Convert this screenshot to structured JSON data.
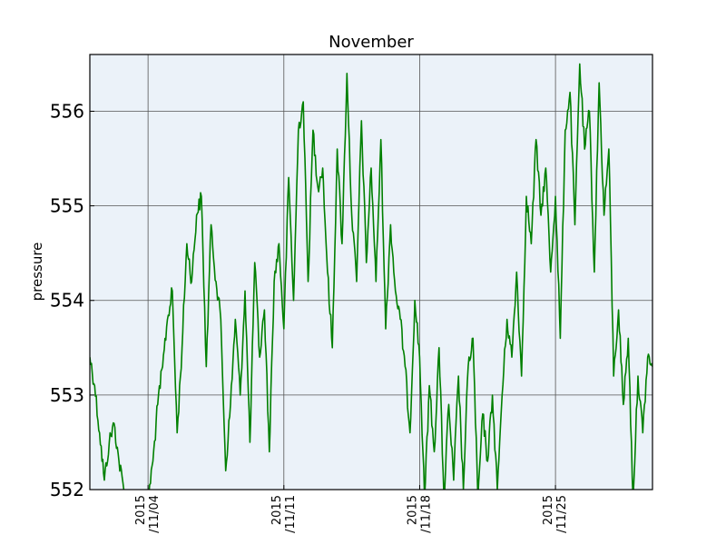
{
  "chart_data": {
    "type": "line",
    "title": "November",
    "xlabel": "",
    "ylabel": "pressure",
    "ylim": [
      552,
      556.6
    ],
    "xlim": [
      "2015-11-01",
      "2015-11-30"
    ],
    "grid": true,
    "yticks": [
      552,
      553,
      554,
      555,
      556
    ],
    "xticks": [
      {
        "date": "2015-11-04",
        "line1": "2015",
        "line2": "/11/04"
      },
      {
        "date": "2015-11-11",
        "line1": "2015",
        "line2": "/11/11"
      },
      {
        "date": "2015-11-18",
        "line1": "2015",
        "line2": "/11/18"
      },
      {
        "date": "2015-11-25",
        "line1": "2015",
        "line2": "/11/25"
      }
    ],
    "series": [
      {
        "color": "#008000",
        "points": [
          [
            "2015-11-01 00:00",
            553.4
          ],
          [
            "2015-11-01 06:00",
            553.1
          ],
          [
            "2015-11-01 12:00",
            552.6
          ],
          [
            "2015-11-01 18:00",
            552.1
          ],
          [
            "2015-11-02 00:00",
            552.5
          ],
          [
            "2015-11-02 06:00",
            552.7
          ],
          [
            "2015-11-02 12:00",
            552.3
          ],
          [
            "2015-11-02 18:00",
            552.0
          ],
          [
            "2015-11-03 00:00",
            551.9
          ],
          [
            "2015-11-03 12:00",
            551.9
          ],
          [
            "2015-11-04 00:00",
            551.9
          ],
          [
            "2015-11-04 06:00",
            552.3
          ],
          [
            "2015-11-04 12:00",
            552.9
          ],
          [
            "2015-11-04 18:00",
            553.3
          ],
          [
            "2015-11-05 00:00",
            553.8
          ],
          [
            "2015-11-05 06:00",
            554.1
          ],
          [
            "2015-11-05 12:00",
            552.6
          ],
          [
            "2015-11-05 18:00",
            553.5
          ],
          [
            "2015-11-06 00:00",
            554.6
          ],
          [
            "2015-11-06 06:00",
            554.2
          ],
          [
            "2015-11-06 12:00",
            554.9
          ],
          [
            "2015-11-06 18:00",
            555.1
          ],
          [
            "2015-11-07 00:00",
            553.3
          ],
          [
            "2015-11-07 06:00",
            554.8
          ],
          [
            "2015-11-07 12:00",
            554.2
          ],
          [
            "2015-11-07 18:00",
            553.8
          ],
          [
            "2015-11-08 00:00",
            552.2
          ],
          [
            "2015-11-08 06:00",
            552.9
          ],
          [
            "2015-11-08 12:00",
            553.8
          ],
          [
            "2015-11-08 18:00",
            553.0
          ],
          [
            "2015-11-09 00:00",
            554.1
          ],
          [
            "2015-11-09 06:00",
            552.5
          ],
          [
            "2015-11-09 12:00",
            554.4
          ],
          [
            "2015-11-09 18:00",
            553.4
          ],
          [
            "2015-11-10 00:00",
            553.9
          ],
          [
            "2015-11-10 06:00",
            552.4
          ],
          [
            "2015-11-10 12:00",
            554.2
          ],
          [
            "2015-11-10 18:00",
            554.6
          ],
          [
            "2015-11-11 00:00",
            553.7
          ],
          [
            "2015-11-11 06:00",
            555.3
          ],
          [
            "2015-11-11 12:00",
            554.0
          ],
          [
            "2015-11-11 18:00",
            555.8
          ],
          [
            "2015-11-12 00:00",
            556.1
          ],
          [
            "2015-11-12 06:00",
            554.2
          ],
          [
            "2015-11-12 12:00",
            555.8
          ],
          [
            "2015-11-12 18:00",
            555.2
          ],
          [
            "2015-11-13 00:00",
            555.4
          ],
          [
            "2015-11-13 06:00",
            554.3
          ],
          [
            "2015-11-13 12:00",
            553.5
          ],
          [
            "2015-11-13 18:00",
            555.6
          ],
          [
            "2015-11-14 00:00",
            554.6
          ],
          [
            "2015-11-14 06:00",
            556.4
          ],
          [
            "2015-11-14 12:00",
            554.9
          ],
          [
            "2015-11-14 18:00",
            554.2
          ],
          [
            "2015-11-15 00:00",
            555.9
          ],
          [
            "2015-11-15 06:00",
            554.4
          ],
          [
            "2015-11-15 12:00",
            555.4
          ],
          [
            "2015-11-15 18:00",
            554.2
          ],
          [
            "2015-11-16 00:00",
            555.7
          ],
          [
            "2015-11-16 06:00",
            553.7
          ],
          [
            "2015-11-16 12:00",
            554.8
          ],
          [
            "2015-11-16 18:00",
            554.1
          ],
          [
            "2015-11-17 00:00",
            553.8
          ],
          [
            "2015-11-17 06:00",
            553.3
          ],
          [
            "2015-11-17 12:00",
            552.6
          ],
          [
            "2015-11-17 18:00",
            554.0
          ],
          [
            "2015-11-18 00:00",
            553.4
          ],
          [
            "2015-11-18 06:00",
            551.9
          ],
          [
            "2015-11-18 12:00",
            553.1
          ],
          [
            "2015-11-18 18:00",
            552.4
          ],
          [
            "2015-11-19 00:00",
            553.5
          ],
          [
            "2015-11-19 06:00",
            551.9
          ],
          [
            "2015-11-19 12:00",
            552.9
          ],
          [
            "2015-11-19 18:00",
            552.1
          ],
          [
            "2015-11-20 00:00",
            553.2
          ],
          [
            "2015-11-20 06:00",
            552.0
          ],
          [
            "2015-11-20 12:00",
            553.3
          ],
          [
            "2015-11-20 18:00",
            553.6
          ],
          [
            "2015-11-21 00:00",
            551.9
          ],
          [
            "2015-11-21 06:00",
            552.8
          ],
          [
            "2015-11-21 12:00",
            552.3
          ],
          [
            "2015-11-21 18:00",
            553.0
          ],
          [
            "2015-11-22 00:00",
            552.0
          ],
          [
            "2015-11-22 06:00",
            553.0
          ],
          [
            "2015-11-22 12:00",
            553.8
          ],
          [
            "2015-11-22 18:00",
            553.4
          ],
          [
            "2015-11-23 00:00",
            554.3
          ],
          [
            "2015-11-23 06:00",
            553.2
          ],
          [
            "2015-11-23 12:00",
            555.1
          ],
          [
            "2015-11-23 18:00",
            554.6
          ],
          [
            "2015-11-24 00:00",
            555.7
          ],
          [
            "2015-11-24 06:00",
            554.9
          ],
          [
            "2015-11-24 12:00",
            555.4
          ],
          [
            "2015-11-24 18:00",
            554.3
          ],
          [
            "2015-11-25 00:00",
            555.1
          ],
          [
            "2015-11-25 06:00",
            553.6
          ],
          [
            "2015-11-25 12:00",
            555.8
          ],
          [
            "2015-11-25 18:00",
            556.2
          ],
          [
            "2015-11-26 00:00",
            554.8
          ],
          [
            "2015-11-26 06:00",
            556.5
          ],
          [
            "2015-11-26 12:00",
            555.6
          ],
          [
            "2015-11-26 18:00",
            556.0
          ],
          [
            "2015-11-27 00:00",
            554.3
          ],
          [
            "2015-11-27 06:00",
            556.3
          ],
          [
            "2015-11-27 12:00",
            554.9
          ],
          [
            "2015-11-27 18:00",
            555.6
          ],
          [
            "2015-11-28 00:00",
            553.2
          ],
          [
            "2015-11-28 06:00",
            553.9
          ],
          [
            "2015-11-28 12:00",
            552.9
          ],
          [
            "2015-11-28 18:00",
            553.6
          ],
          [
            "2015-11-29 00:00",
            551.9
          ],
          [
            "2015-11-29 06:00",
            553.2
          ],
          [
            "2015-11-29 12:00",
            552.6
          ],
          [
            "2015-11-29 18:00",
            553.4
          ],
          [
            "2015-11-30 00:00",
            553.3
          ]
        ]
      }
    ]
  }
}
